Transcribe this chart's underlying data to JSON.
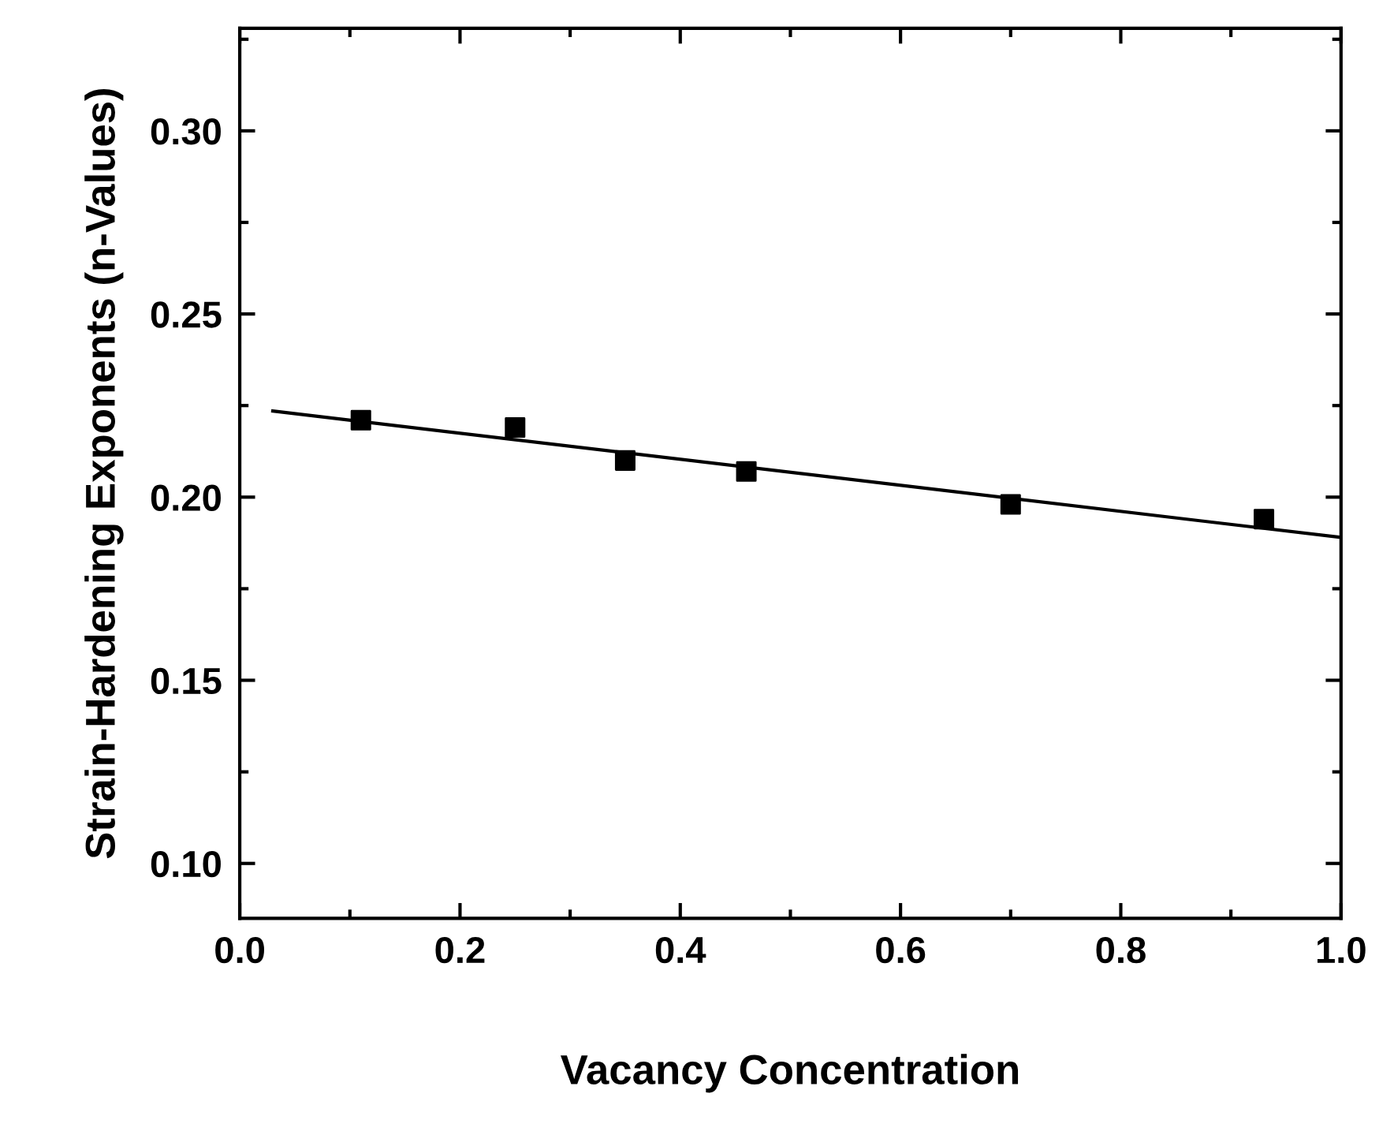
{
  "chart_data": {
    "type": "scatter",
    "xlabel": "Vacancy Concentration",
    "ylabel": "Strain-Hardening Exponents (n-Values)",
    "xlim": [
      0.0,
      1.0
    ],
    "ylim": [
      0.085,
      0.328
    ],
    "xticks": [
      {
        "value": 0.0,
        "label": "0.0"
      },
      {
        "value": 0.2,
        "label": "0.2"
      },
      {
        "value": 0.4,
        "label": "0.4"
      },
      {
        "value": 0.6,
        "label": "0.6"
      },
      {
        "value": 0.8,
        "label": "0.8"
      },
      {
        "value": 1.0,
        "label": "1.0"
      }
    ],
    "yticks": [
      {
        "value": 0.1,
        "label": "0.10"
      },
      {
        "value": 0.15,
        "label": "0.15"
      },
      {
        "value": 0.2,
        "label": "0.20"
      },
      {
        "value": 0.25,
        "label": "0.25"
      },
      {
        "value": 0.3,
        "label": "0.30"
      }
    ],
    "grid": false,
    "legend": false,
    "series": [
      {
        "marker": "square",
        "color": "#000000",
        "x": [
          0.11,
          0.25,
          0.35,
          0.46,
          0.7,
          0.93
        ],
        "values": [
          0.221,
          0.219,
          0.21,
          0.207,
          0.198,
          0.194
        ]
      },
      {
        "type": "line",
        "color": "#000000",
        "x": [
          0.03,
          1.0
        ],
        "values": [
          0.2235,
          0.189
        ]
      }
    ]
  }
}
